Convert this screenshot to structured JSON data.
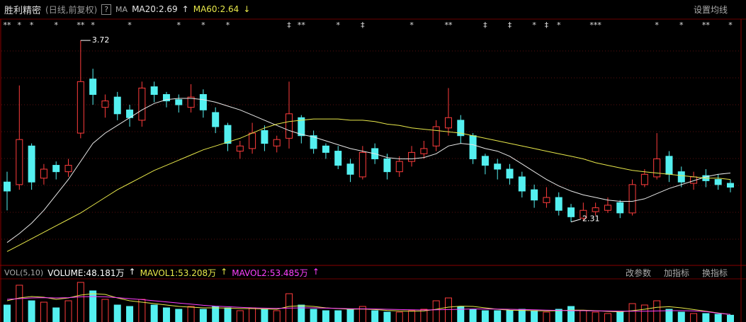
{
  "chart_data": {
    "type": "candlestick",
    "title": "胜利精密",
    "subtitle": "(日线,前复权)",
    "help": "?",
    "indicator": "MA",
    "settings_button": "设置均线",
    "max_label": "3.72",
    "min_label": "2.31",
    "ylim": [
      2.0,
      3.88
    ],
    "up_color": "#ff3c3c",
    "down_color": "#54f0f0",
    "grid": true,
    "opens": [
      2.62,
      2.6,
      2.9,
      2.65,
      2.75,
      2.7,
      3.0,
      3.42,
      3.2,
      3.28,
      3.18,
      3.1,
      3.36,
      3.3,
      3.26,
      3.2,
      3.3,
      3.16,
      3.06,
      2.86,
      2.88,
      3.02,
      2.9,
      2.96,
      3.12,
      2.98,
      2.9,
      2.86,
      2.76,
      2.66,
      2.88,
      2.8,
      2.7,
      2.78,
      2.84,
      2.9,
      3.04,
      3.1,
      2.98,
      2.82,
      2.76,
      2.72,
      2.66,
      2.56,
      2.46,
      2.5,
      2.42,
      2.34,
      2.39,
      2.4,
      2.46,
      2.38,
      2.6,
      2.66,
      2.82,
      2.7,
      2.61,
      2.67,
      2.64,
      2.61
    ],
    "highs": [
      2.7,
      3.37,
      2.92,
      2.76,
      2.78,
      2.8,
      3.72,
      3.5,
      3.3,
      3.32,
      3.22,
      3.4,
      3.4,
      3.32,
      3.3,
      3.38,
      3.34,
      3.2,
      3.08,
      2.94,
      3.08,
      3.06,
      2.98,
      3.4,
      3.14,
      3.02,
      2.92,
      2.9,
      2.8,
      2.9,
      2.92,
      2.84,
      2.82,
      2.9,
      2.94,
      3.1,
      3.35,
      3.14,
      3.0,
      2.84,
      2.8,
      2.76,
      2.7,
      2.6,
      2.58,
      2.54,
      2.45,
      2.46,
      2.46,
      2.5,
      2.48,
      2.64,
      2.72,
      3.0,
      2.86,
      2.74,
      2.7,
      2.72,
      2.68,
      2.64
    ],
    "lows": [
      2.4,
      2.56,
      2.56,
      2.6,
      2.64,
      2.66,
      2.96,
      3.22,
      3.12,
      3.1,
      3.05,
      3.05,
      3.24,
      3.2,
      3.16,
      3.16,
      3.12,
      3.0,
      2.86,
      2.8,
      2.84,
      2.86,
      2.85,
      2.88,
      2.92,
      2.84,
      2.8,
      2.72,
      2.62,
      2.64,
      2.76,
      2.64,
      2.66,
      2.74,
      2.8,
      2.86,
      2.98,
      2.92,
      2.76,
      2.68,
      2.64,
      2.6,
      2.5,
      2.42,
      2.42,
      2.36,
      2.31,
      2.32,
      2.36,
      2.38,
      2.34,
      2.36,
      2.58,
      2.64,
      2.62,
      2.58,
      2.56,
      2.58,
      2.56,
      2.54
    ],
    "closes": [
      2.55,
      2.95,
      2.62,
      2.72,
      2.7,
      2.75,
      3.4,
      3.3,
      3.25,
      3.15,
      3.12,
      3.35,
      3.3,
      3.25,
      3.22,
      3.28,
      3.18,
      3.05,
      2.92,
      2.9,
      3.0,
      2.92,
      2.95,
      3.15,
      2.98,
      2.88,
      2.85,
      2.75,
      2.68,
      2.85,
      2.8,
      2.7,
      2.78,
      2.85,
      2.88,
      3.05,
      3.12,
      2.98,
      2.8,
      2.75,
      2.72,
      2.65,
      2.55,
      2.48,
      2.5,
      2.4,
      2.35,
      2.4,
      2.42,
      2.44,
      2.38,
      2.6,
      2.68,
      2.8,
      2.68,
      2.62,
      2.66,
      2.63,
      2.6,
      2.58
    ],
    "event_markers": [
      "**",
      "*",
      "*",
      null,
      "*",
      null,
      "**",
      "*",
      null,
      null,
      "*",
      null,
      null,
      null,
      "*",
      null,
      "*",
      null,
      "*",
      null,
      null,
      null,
      null,
      "‡",
      "**",
      null,
      null,
      "*",
      null,
      "‡",
      null,
      null,
      null,
      "*",
      null,
      null,
      "**",
      null,
      null,
      "‡",
      null,
      "‡",
      null,
      "*",
      "‡",
      "*",
      null,
      null,
      "***",
      null,
      null,
      null,
      null,
      "*",
      null,
      "*",
      null,
      "**",
      null,
      "*"
    ],
    "series": [
      {
        "label": "MA20:2.69",
        "trend": "↑",
        "color": "#e8e8e8",
        "values": [
          2.15,
          2.22,
          2.3,
          2.4,
          2.52,
          2.64,
          2.78,
          2.92,
          3.0,
          3.06,
          3.12,
          3.18,
          3.23,
          3.26,
          3.27,
          3.27,
          3.26,
          3.24,
          3.21,
          3.18,
          3.14,
          3.1,
          3.06,
          3.02,
          2.99,
          2.97,
          2.94,
          2.91,
          2.88,
          2.86,
          2.84,
          2.81,
          2.8,
          2.8,
          2.81,
          2.84,
          2.9,
          2.92,
          2.91,
          2.88,
          2.86,
          2.82,
          2.76,
          2.7,
          2.64,
          2.59,
          2.55,
          2.52,
          2.5,
          2.48,
          2.47,
          2.47,
          2.49,
          2.53,
          2.57,
          2.6,
          2.63,
          2.66,
          2.68,
          2.69
        ]
      },
      {
        "label": "MA60:2.64",
        "trend": "↓",
        "color": "#e8e84a",
        "values": [
          2.08,
          2.13,
          2.18,
          2.23,
          2.28,
          2.33,
          2.38,
          2.44,
          2.5,
          2.56,
          2.61,
          2.66,
          2.71,
          2.75,
          2.79,
          2.83,
          2.87,
          2.9,
          2.93,
          2.96,
          3.0,
          3.04,
          3.07,
          3.09,
          3.1,
          3.11,
          3.11,
          3.11,
          3.1,
          3.1,
          3.09,
          3.07,
          3.06,
          3.04,
          3.03,
          3.02,
          3.01,
          3.0,
          2.98,
          2.96,
          2.94,
          2.92,
          2.9,
          2.88,
          2.86,
          2.84,
          2.82,
          2.8,
          2.77,
          2.75,
          2.73,
          2.71,
          2.7,
          2.69,
          2.68,
          2.67,
          2.66,
          2.65,
          2.65,
          2.64
        ]
      }
    ],
    "volume": {
      "title": "VOL(5,10)",
      "label": "VOLUME:48.181万",
      "trend": "↑",
      "color": "#ffffff",
      "ylim": [
        0,
        300
      ],
      "buttons": [
        "改参数",
        "加指标",
        "换指标"
      ],
      "values": [
        120,
        260,
        150,
        140,
        100,
        150,
        280,
        220,
        160,
        120,
        110,
        160,
        120,
        100,
        90,
        110,
        90,
        110,
        100,
        80,
        100,
        90,
        80,
        200,
        120,
        90,
        80,
        80,
        90,
        110,
        80,
        70,
        70,
        80,
        90,
        150,
        170,
        110,
        90,
        80,
        80,
        80,
        90,
        80,
        70,
        90,
        110,
        80,
        70,
        60,
        70,
        130,
        120,
        150,
        90,
        70,
        60,
        60,
        55,
        48.181
      ],
      "series": [
        {
          "label": "MAVOL1:53.208万",
          "trend": "↑",
          "color": "#e8e84a",
          "values": [
            150,
            170,
            180,
            175,
            160,
            170,
            190,
            200,
            195,
            170,
            150,
            140,
            130,
            120,
            110,
            105,
            100,
            100,
            98,
            95,
            95,
            92,
            90,
            110,
            115,
            110,
            100,
            95,
            90,
            92,
            88,
            82,
            78,
            76,
            78,
            90,
            105,
            112,
            110,
            100,
            90,
            84,
            82,
            80,
            78,
            80,
            84,
            84,
            80,
            75,
            72,
            80,
            90,
            104,
            108,
            100,
            88,
            76,
            64,
            53.208
          ]
        },
        {
          "label": "MAVOL2:53.485万",
          "trend": "↑",
          "color": "#ff40ff",
          "values": [
            160,
            165,
            170,
            172,
            170,
            172,
            178,
            180,
            178,
            172,
            165,
            158,
            150,
            142,
            134,
            126,
            118,
            112,
            108,
            104,
            100,
            98,
            96,
            98,
            100,
            100,
            98,
            96,
            94,
            93,
            92,
            90,
            88,
            86,
            85,
            86,
            88,
            90,
            92,
            92,
            91,
            90,
            88,
            86,
            84,
            82,
            80,
            80,
            79,
            78,
            77,
            76,
            76,
            78,
            80,
            80,
            78,
            74,
            62,
            53.485
          ]
        }
      ]
    }
  }
}
